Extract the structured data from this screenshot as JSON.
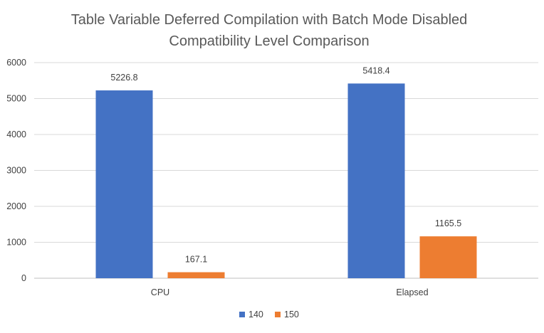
{
  "chart_data": {
    "type": "bar",
    "title": "Table Variable Deferred Compilation with Batch Mode Disabled",
    "subtitle": "Compatibility Level Comparison",
    "categories": [
      "CPU",
      "Elapsed"
    ],
    "series": [
      {
        "name": "140",
        "values": [
          5226.8,
          5418.4
        ],
        "color": "#4472C4",
        "labels": [
          "5226.8",
          "5418.4"
        ]
      },
      {
        "name": "150",
        "values": [
          167.1,
          1165.5
        ],
        "color": "#ED7D31",
        "labels": [
          "167.1",
          "1165.5"
        ]
      }
    ],
    "ylim": [
      0,
      6000
    ],
    "yticks": [
      0,
      1000,
      2000,
      3000,
      4000,
      5000,
      6000
    ],
    "grid": true,
    "legend_position": "bottom"
  }
}
